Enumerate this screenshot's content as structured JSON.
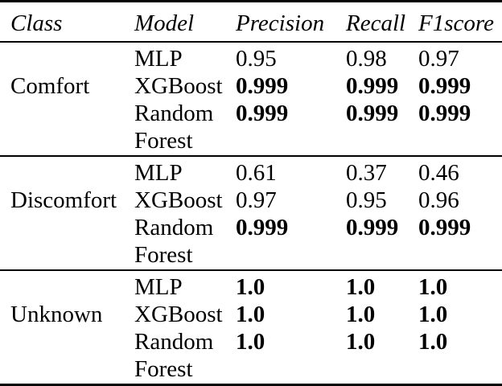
{
  "page": {
    "background": "#ffffff",
    "text_color": "#000000",
    "rule_color": "#000000"
  },
  "table": {
    "headers": [
      "Class",
      "Model",
      "Precision",
      "Recall",
      "F1score"
    ],
    "groups": [
      {
        "class_name": "Comfort",
        "rows": [
          {
            "model": "MLP",
            "precision": "0.95",
            "recall": "0.98",
            "f1score": "0.97",
            "bold": false
          },
          {
            "model": "XGBoost",
            "precision": "0.999",
            "recall": "0.999",
            "f1score": "0.999",
            "bold": true
          },
          {
            "model": "Random Forest",
            "precision": "0.999",
            "recall": "0.999",
            "f1score": "0.999",
            "bold": true
          }
        ]
      },
      {
        "class_name": "Discomfort",
        "rows": [
          {
            "model": "MLP",
            "precision": "0.61",
            "recall": "0.37",
            "f1score": "0.46",
            "bold": false
          },
          {
            "model": "XGBoost",
            "precision": "0.97",
            "recall": "0.95",
            "f1score": "0.96",
            "bold": false
          },
          {
            "model": "Random Forest",
            "precision": "0.999",
            "recall": "0.999",
            "f1score": "0.999",
            "bold": true
          }
        ]
      },
      {
        "class_name": "Unknown",
        "rows": [
          {
            "model": "MLP",
            "precision": "1.0",
            "recall": "1.0",
            "f1score": "1.0",
            "bold": true
          },
          {
            "model": "XGBoost",
            "precision": "1.0",
            "recall": "1.0",
            "f1score": "1.0",
            "bold": true
          },
          {
            "model": "Random Forest",
            "precision": "1.0",
            "recall": "1.0",
            "f1score": "1.0",
            "bold": true
          }
        ]
      }
    ]
  }
}
